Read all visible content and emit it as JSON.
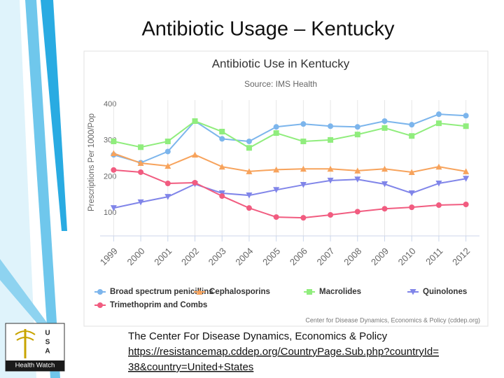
{
  "slide": {
    "title": "Antibiotic Usage – Kentucky"
  },
  "logo": {
    "letters": [
      "U",
      "S",
      "A"
    ],
    "caption": "Health Watch"
  },
  "footer": {
    "source": "The Center For Disease Dynamics, Economics & Policy",
    "link": [
      "https://resistancemap.cddep.org/CountryPage.Sub.php?countryId=",
      "38&country=United+States"
    ]
  },
  "chart_data": {
    "type": "line",
    "title": "Antibiotic Use in Kentucky",
    "subtitle": "Source: IMS Health",
    "y_label": "Prescriptions Per 1000/Pop",
    "credit": "Center for Disease Dynamics, Economics & Policy (cddep.org)",
    "categories": [
      "1999",
      "2000",
      "2001",
      "2002",
      "2003",
      "2004",
      "2005",
      "2006",
      "2007",
      "2008",
      "2009",
      "2010",
      "2011",
      "2012"
    ],
    "ylim": [
      50,
      425
    ],
    "yticks": [
      100,
      200,
      300,
      400
    ],
    "grid": "x",
    "series": [
      {
        "name": "Broad spectrum penicillins",
        "color": "#7cb5ec",
        "marker": "circle",
        "values": [
          274,
          252,
          283,
          367,
          318,
          311,
          351,
          359,
          353,
          351,
          367,
          357,
          386,
          382
        ]
      },
      {
        "name": "Cephalosporins",
        "color": "#f7a35c",
        "marker": "triangle",
        "values": [
          278,
          251,
          243,
          274,
          241,
          228,
          233,
          235,
          235,
          230,
          235,
          226,
          241,
          228
        ]
      },
      {
        "name": "Macrolides",
        "color": "#90ed7d",
        "marker": "square",
        "values": [
          311,
          295,
          311,
          367,
          338,
          293,
          334,
          311,
          315,
          330,
          348,
          326,
          361,
          353
        ]
      },
      {
        "name": "Quinolones",
        "color": "#8085e9",
        "marker": "triangle-down",
        "values": [
          127,
          143,
          158,
          193,
          168,
          162,
          177,
          191,
          203,
          206,
          193,
          168,
          195,
          208
        ]
      },
      {
        "name": "Trimethoprim and Combs",
        "color": "#f15c80",
        "marker": "circle",
        "values": [
          232,
          226,
          195,
          197,
          160,
          127,
          102,
          100,
          108,
          117,
          125,
          129,
          135,
          137
        ]
      }
    ]
  }
}
